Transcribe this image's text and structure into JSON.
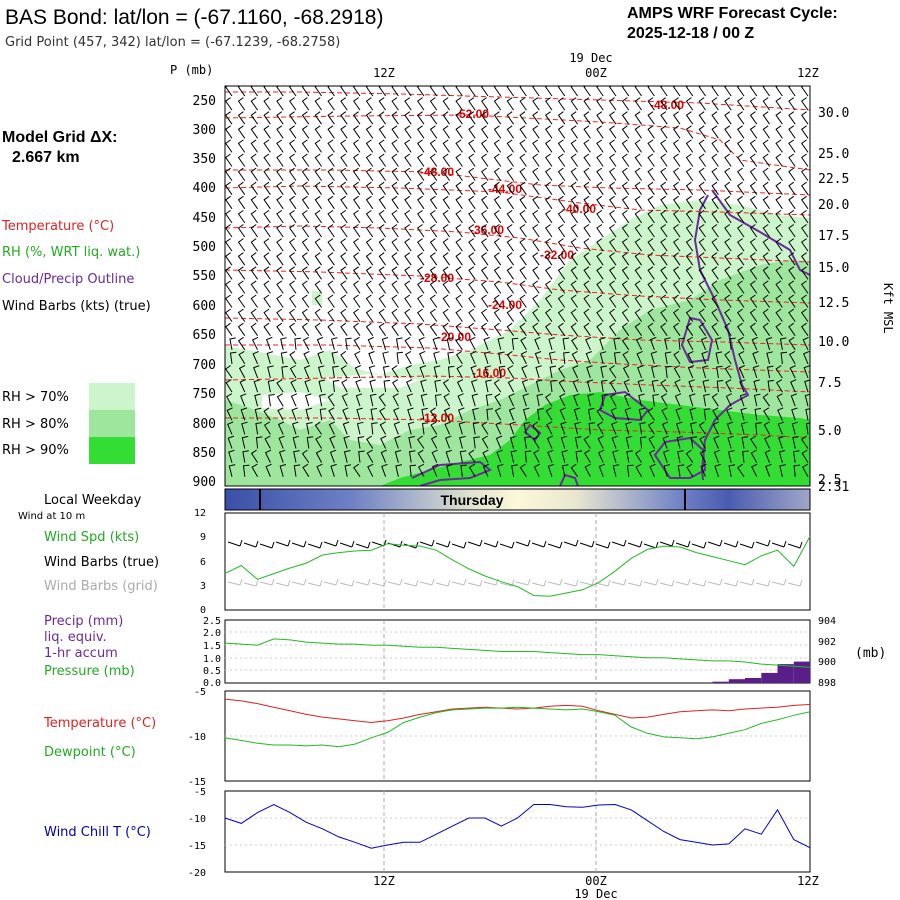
{
  "header": {
    "title": "BAS Bond:  lat/lon = (-67.1160, -68.2918)",
    "grid_point": "Grid Point (457, 342) lat/lon = (-67.1239, -68.2758)",
    "cycle_label": "AMPS WRF Forecast Cycle:",
    "cycle_value": "2025-12-18 / 00  Z"
  },
  "time_axis": {
    "ticks": [
      "12Z",
      "00Z",
      "12Z"
    ],
    "date_label": "19 Dec"
  },
  "left_legend": {
    "model_grid_label": "Model Grid ΔX:",
    "model_grid_value": "2.667 km",
    "temperature": "Temperature (°C)",
    "rh": "RH (%, WRT liq. wat.)",
    "cloud": "Cloud/Precip Outline",
    "wind_barbs": "Wind Barbs (kts) (true)",
    "rh70": "RH > 70%",
    "rh80": "RH > 80%",
    "rh90": "RH > 90%"
  },
  "colors": {
    "temperature": "#ff0000",
    "rh": "#22bb22",
    "cloud": "#7030a0",
    "rh70": "#ccf5cc",
    "rh80": "#9ee69e",
    "rh90": "#33dd33",
    "wind_chill": "#0000cc",
    "precip": "#5a1e8a",
    "pressure": "#22bb22",
    "dewpoint": "#22bb22",
    "wind_grid": "#bbbbbb"
  },
  "weekday_bar": {
    "title": "Local Weekday",
    "subtitle": "Wind at 10 m",
    "day": "Thursday"
  },
  "cross_section": {
    "ylabel": "P (mb)",
    "pressure_levels": [
      "250",
      "300",
      "350",
      "400",
      "450",
      "500",
      "550",
      "600",
      "650",
      "700",
      "750",
      "800",
      "850",
      "900"
    ],
    "height_labels": [
      "30.0",
      "25.0",
      "22.5",
      "20.0",
      "17.5",
      "15.0",
      "12.5",
      "10.0",
      "7.5",
      "5.0",
      "2.5",
      "2.31"
    ],
    "right_label": "Kft MSL",
    "isotherm_labels": [
      "-48.00",
      "-52.00",
      "-48.00",
      "-44.00",
      "-40.00",
      "-36.00",
      "-32.00",
      "-28.00",
      "-24.00",
      "-20.00",
      "-16.00",
      "-12.00"
    ]
  },
  "wind_panel": {
    "spd_label": "Wind Spd (kts)",
    "barb_true_label": "Wind Barbs (true)",
    "barb_grid_label": "Wind Barbs (grid)",
    "yticks": [
      "12",
      "9",
      "6",
      "3",
      "0"
    ]
  },
  "precip_panel": {
    "label_lines": [
      "Precip (mm)",
      "liq. equiv.",
      "1-hr accum"
    ],
    "pressure_label": "Pressure (mb)",
    "left_ticks": [
      "2.5",
      "2.0",
      "1.5",
      "1.0",
      "0.5",
      "0.0"
    ],
    "right_ticks": [
      "904",
      "902",
      "900",
      "898"
    ],
    "right_unit": "(mb)"
  },
  "temp_panel": {
    "temp_label": "Temperature (°C)",
    "dew_label": "Dewpoint (°C)",
    "yticks": [
      "-5",
      "-10",
      "-15"
    ]
  },
  "chill_panel": {
    "label": "Wind Chill T (°C)",
    "yticks": [
      "-5",
      "-10",
      "-15",
      "-20"
    ]
  },
  "chart_data": {
    "type": "line",
    "forecast_hours": [
      0,
      1,
      2,
      3,
      4,
      5,
      6,
      7,
      8,
      9,
      10,
      11,
      12,
      13,
      14,
      15,
      16,
      17,
      18,
      19,
      20,
      21,
      22,
      23,
      24,
      25,
      26,
      27,
      28,
      29,
      30,
      31,
      32,
      33,
      34,
      35,
      36
    ],
    "series": [
      {
        "name": "Wind Spd (kts)",
        "ylim": [
          0,
          12
        ],
        "values": [
          4.5,
          5.5,
          3.8,
          4.5,
          5.2,
          5.8,
          6.8,
          7.1,
          7.3,
          7.4,
          8.2,
          8.0,
          7.9,
          7.4,
          6.2,
          5.1,
          4.2,
          3.5,
          2.9,
          1.8,
          1.7,
          2.1,
          2.5,
          3.4,
          4.8,
          6.4,
          7.5,
          7.9,
          7.8,
          7.1,
          6.6,
          6.1,
          5.6,
          6.7,
          7.4,
          5.4,
          9.1
        ]
      },
      {
        "name": "Precip (mm) 1-hr accum",
        "ylim": [
          0,
          2.5
        ],
        "values": [
          0,
          0,
          0,
          0,
          0,
          0,
          0,
          0,
          0,
          0,
          0,
          0,
          0,
          0,
          0,
          0,
          0,
          0,
          0,
          0,
          0,
          0,
          0,
          0,
          0,
          0,
          0,
          0,
          0,
          0,
          0,
          0.05,
          0.15,
          0.2,
          0.4,
          0.75,
          0.85
        ]
      },
      {
        "name": "Pressure (mb)",
        "ylim": [
          898,
          904
        ],
        "values": [
          901.8,
          901.7,
          901.6,
          902.2,
          902.1,
          901.9,
          901.8,
          901.7,
          901.7,
          901.6,
          901.6,
          901.5,
          901.4,
          901.4,
          901.3,
          901.2,
          901.1,
          901.0,
          901.0,
          901.0,
          900.9,
          900.8,
          900.7,
          900.7,
          900.6,
          900.5,
          900.4,
          900.4,
          900.3,
          900.2,
          900.1,
          900.1,
          900.0,
          899.8,
          899.7,
          899.6,
          899.5
        ]
      },
      {
        "name": "Temperature (°C)",
        "ylim": [
          -15,
          -5
        ],
        "values": [
          -5.9,
          -6.1,
          -6.4,
          -6.8,
          -7.2,
          -7.6,
          -7.9,
          -8.1,
          -8.3,
          -8.5,
          -8.3,
          -8.0,
          -7.6,
          -7.3,
          -7.0,
          -6.9,
          -6.8,
          -6.9,
          -7.0,
          -6.9,
          -6.7,
          -6.6,
          -6.7,
          -7.2,
          -7.6,
          -8.0,
          -7.9,
          -7.6,
          -7.3,
          -7.2,
          -7.1,
          -7.2,
          -7.0,
          -6.9,
          -6.8,
          -6.6,
          -6.5
        ]
      },
      {
        "name": "Dewpoint (°C)",
        "ylim": [
          -15,
          -5
        ],
        "values": [
          -10.2,
          -10.5,
          -10.8,
          -11.0,
          -11.0,
          -11.1,
          -11.0,
          -11.2,
          -10.9,
          -10.2,
          -9.6,
          -8.5,
          -7.9,
          -7.4,
          -7.1,
          -7.0,
          -6.9,
          -6.9,
          -6.8,
          -6.9,
          -7.0,
          -7.1,
          -7.0,
          -7.3,
          -7.7,
          -9.0,
          -9.7,
          -10.1,
          -10.2,
          -10.3,
          -10.1,
          -9.7,
          -9.3,
          -8.6,
          -8.2,
          -7.7,
          -7.3
        ]
      },
      {
        "name": "Wind Chill T (°C)",
        "ylim": [
          -20,
          -5
        ],
        "values": [
          -10.0,
          -11.0,
          -9.0,
          -7.5,
          -9.0,
          -10.8,
          -12.0,
          -13.5,
          -14.5,
          -15.6,
          -15.0,
          -14.5,
          -14.5,
          -13.0,
          -11.5,
          -10.0,
          -10.0,
          -11.5,
          -10.0,
          -7.5,
          -7.5,
          -7.9,
          -8.0,
          -7.6,
          -7.5,
          -8.5,
          -10.5,
          -12.5,
          -14.0,
          -14.5,
          -15.0,
          -14.8,
          -12.0,
          -13.0,
          -8.5,
          -14.0,
          -15.5
        ]
      }
    ]
  }
}
